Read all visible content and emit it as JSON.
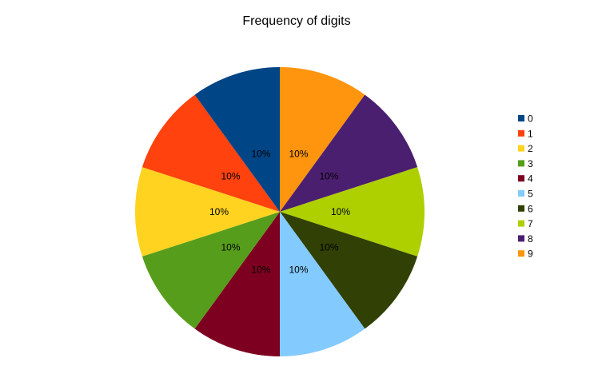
{
  "chart_data": {
    "type": "pie",
    "title": "Frequency of digits",
    "categories": [
      "0",
      "1",
      "2",
      "3",
      "4",
      "5",
      "6",
      "7",
      "8",
      "9"
    ],
    "values": [
      10,
      10,
      10,
      10,
      10,
      10,
      10,
      10,
      10,
      10
    ],
    "data_labels": [
      "10%",
      "10%",
      "10%",
      "10%",
      "10%",
      "10%",
      "10%",
      "10%",
      "10%",
      "10%"
    ],
    "colors": [
      "#004586",
      "#ff420e",
      "#ffd320",
      "#579d1c",
      "#7e0021",
      "#83caff",
      "#314004",
      "#aecf00",
      "#4b1f6f",
      "#ff950e"
    ],
    "legend_position": "right",
    "slice_order_note_free": true
  }
}
